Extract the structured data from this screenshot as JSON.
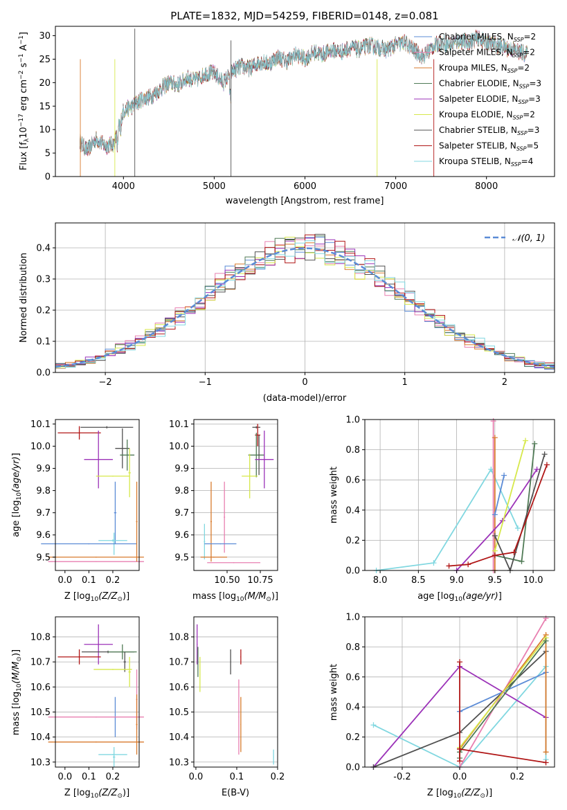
{
  "title": "PLATE=1832, MJD=54259, FIBERID=0148, z=0.081",
  "colors": {
    "chabrier_miles": "#5b8bd6",
    "salpeter_miles": "#e87fb0",
    "kroupa_miles": "#d87a2c",
    "chabrier_elodie": "#4f7a55",
    "salpeter_elodie": "#9b32b8",
    "kroupa_elodie": "#d6e84a",
    "chabrier_stelib": "#505050",
    "salpeter_stelib": "#b01515",
    "kroupa_stelib": "#80d7e0"
  },
  "chart_data": [
    {
      "type": "line",
      "id": "spectrum",
      "xlabel": "wavelength [Angstrom, rest frame]",
      "ylabel": "Flux [f_λ 10^-17 erg cm^-2 s^-1 A^-1]",
      "xlim": [
        3250,
        8750
      ],
      "ylim": [
        0,
        32
      ],
      "xticks": [
        4000,
        5000,
        6000,
        7000,
        8000
      ],
      "yticks": [
        0,
        5,
        10,
        15,
        20,
        25,
        30
      ],
      "legend": [
        "Chabrier MILES, N_SSP=2",
        "Salpeter MILES, N_SSP=2",
        "Kroupa MILES, N_SSP=2",
        "Chabrier ELODIE, N_SSP=3",
        "Salpeter ELODIE, N_SSP=3",
        "Kroupa ELODIE, N_SSP=2",
        "Chabrier STELIB, N_SSP=3",
        "Salpeter STELIB, N_SSP=5",
        "Kroupa STELIB, N_SSP=4"
      ],
      "legend_location": "right",
      "x": [
        3520,
        3600,
        3700,
        3800,
        3900,
        4000,
        4100,
        4200,
        4300,
        4400,
        4500,
        4600,
        4700,
        4800,
        4900,
        5000,
        5100,
        5200,
        5300,
        5400,
        5500,
        5600,
        5700,
        5800,
        5900,
        6000,
        6100,
        6200,
        6300,
        6400,
        6500,
        6600,
        6700,
        6800,
        6900,
        7000,
        7100,
        7200,
        7300,
        7400,
        7500,
        7600,
        7700,
        7800,
        7900,
        8000,
        8100,
        8200,
        8300,
        8450
      ],
      "y": [
        7.5,
        5.5,
        8.0,
        6.5,
        7.0,
        14.0,
        15.0,
        16.5,
        17.0,
        18.5,
        20.0,
        19.5,
        21.0,
        20.5,
        22.0,
        22.0,
        20.0,
        22.5,
        23.5,
        23.0,
        24.5,
        24.0,
        25.5,
        24.5,
        26.0,
        25.0,
        26.5,
        26.0,
        27.0,
        26.5,
        27.5,
        27.0,
        28.0,
        27.5,
        27.0,
        28.0,
        28.5,
        27.0,
        25.5,
        27.5,
        28.5,
        28.0,
        29.0,
        28.5,
        29.5,
        28.5,
        28.0,
        27.5,
        27.0,
        26.0
      ]
    },
    {
      "type": "histogram",
      "id": "residuals",
      "xlabel": "(data-model)/error",
      "ylabel": "Normed distribution",
      "xlim": [
        -2.5,
        2.5
      ],
      "ylim": [
        0,
        0.48
      ],
      "xticks": [
        -2,
        -1,
        0,
        1,
        2
      ],
      "yticks": [
        0.0,
        0.1,
        0.2,
        0.3,
        0.4
      ],
      "grid": true,
      "legend": [
        "𝒩(0, 1)"
      ],
      "legend_location": "top-right",
      "bin_width": 0.1
    },
    {
      "type": "scatter",
      "id": "age-vs-Z",
      "xlabel": "Z [log10(Z/Z⊙)]",
      "ylabel": "age [log10(age/yr)]",
      "xlim": [
        -0.04,
        0.31
      ],
      "ylim": [
        9.44,
        10.12
      ],
      "xticks": [
        0.0,
        0.1,
        0.2
      ],
      "yticks": [
        9.5,
        9.6,
        9.7,
        9.8,
        9.9,
        10.0,
        10.1
      ]
    },
    {
      "type": "scatter",
      "id": "age-vs-mass",
      "xlabel": "mass [log10(M/M⊙)]",
      "ylabel": "",
      "xlim": [
        10.25,
        10.88
      ],
      "ylim": [
        9.44,
        10.12
      ],
      "xticks": [
        10.5,
        10.75
      ],
      "yticks": [
        9.5,
        9.6,
        9.7,
        9.8,
        9.9,
        10.0,
        10.1
      ]
    },
    {
      "type": "line",
      "id": "weight-vs-age",
      "xlabel": "age [log10(age/yr)]",
      "ylabel": "mass weight",
      "xlim": [
        7.8,
        10.28
      ],
      "ylim": [
        0,
        1.0
      ],
      "xticks": [
        8.0,
        8.5,
        9.0,
        9.5,
        10.0
      ],
      "yticks": [
        0.0,
        0.2,
        0.4,
        0.6,
        0.8,
        1.0
      ],
      "grid": true
    },
    {
      "type": "scatter",
      "id": "mass-vs-Z",
      "xlabel": "Z [log10(Z/Z⊙)]",
      "ylabel": "mass [log10(M/M⊙)]",
      "xlim": [
        -0.04,
        0.31
      ],
      "ylim": [
        10.28,
        10.88
      ],
      "xticks": [
        0.0,
        0.1,
        0.2
      ],
      "yticks": [
        10.3,
        10.4,
        10.5,
        10.6,
        10.7,
        10.8
      ]
    },
    {
      "type": "scatter",
      "id": "mass-vs-ebv",
      "xlabel": "E(B-V)",
      "ylabel": "",
      "xlim": [
        -0.005,
        0.2
      ],
      "ylim": [
        10.28,
        10.88
      ],
      "xticks": [
        0.0,
        0.1,
        0.2
      ],
      "yticks": [
        10.3,
        10.4,
        10.5,
        10.6,
        10.7,
        10.8
      ]
    },
    {
      "type": "line",
      "id": "weight-vs-Z",
      "xlabel": "Z [log10(Z/Z⊙)]",
      "ylabel": "mass weight",
      "xlim": [
        -0.33,
        0.33
      ],
      "ylim": [
        0,
        1.0
      ],
      "xticks": [
        -0.2,
        0.0,
        0.2
      ],
      "yticks": [
        0.0,
        0.2,
        0.4,
        0.6,
        0.8,
        1.0
      ],
      "grid": true
    }
  ]
}
